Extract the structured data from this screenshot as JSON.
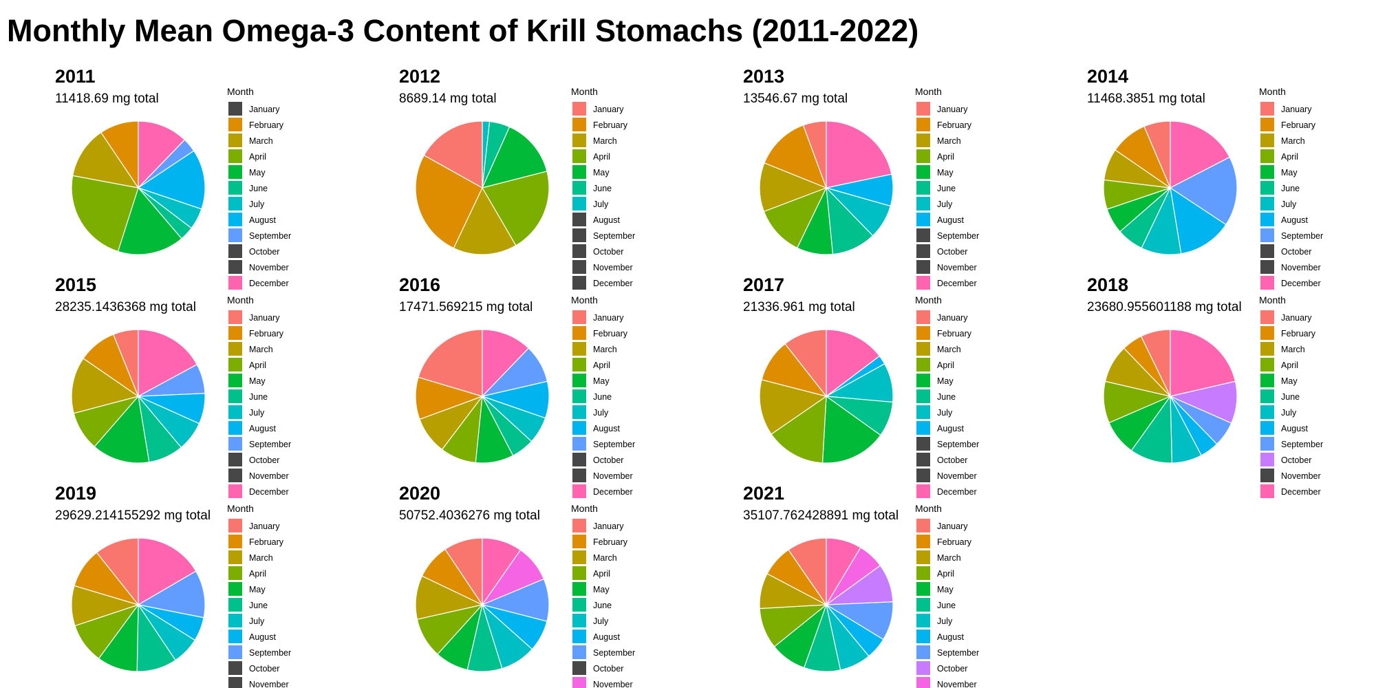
{
  "chart_data": {
    "type": "pie",
    "title": "Monthly Mean Omega-3 Content of Krill Stomachs (2011-2022)",
    "legend_title": "Month",
    "months": [
      "January",
      "February",
      "March",
      "April",
      "May",
      "June",
      "July",
      "August",
      "September",
      "October",
      "November",
      "December"
    ],
    "month_colors": [
      "#F8766D",
      "#DE8C00",
      "#B79F00",
      "#7CAE00",
      "#00BA38",
      "#00C08B",
      "#00BFC4",
      "#00B4F0",
      "#619CFF",
      "#C77CFF",
      "#F564E3",
      "#FF64B0"
    ],
    "missing_color": "#474747",
    "legend_placement": "right of each pie",
    "panels": [
      {
        "year": "2011",
        "total_label": "11418.69 mg total",
        "values": [
          null,
          9.1,
          12.2,
          22.2,
          15.6,
          3.3,
          5.0,
          14.0,
          3.3,
          null,
          null,
          11.8
        ]
      },
      {
        "year": "2012",
        "total_label": "8689.14 mg total",
        "values": [
          16.4,
          25.3,
          15.0,
          20.0,
          13.9,
          4.8,
          1.7,
          null,
          null,
          null,
          null,
          null
        ]
      },
      {
        "year": "2013",
        "total_label": "13546.67 mg total",
        "values": [
          5.4,
          12.8,
          11.4,
          11.6,
          8.4,
          10.3,
          8.0,
          7.4,
          null,
          null,
          null,
          20.9
        ]
      },
      {
        "year": "2014",
        "total_label": "11468.3851 mg total",
        "values": [
          6.4,
          9.0,
          7.7,
          7.1,
          6.2,
          6.5,
          9.7,
          13.1,
          16.9,
          null,
          null,
          17.4
        ]
      },
      {
        "year": "2015",
        "total_label": "28235.1436368 mg total",
        "values": [
          6.1,
          9.3,
          13.7,
          9.5,
          14.0,
          8.5,
          7.2,
          7.4,
          7.2,
          null,
          null,
          17.1
        ]
      },
      {
        "year": "2016",
        "total_label": "17471.569215 mg total",
        "values": [
          20.4,
          10.2,
          9.1,
          8.7,
          9.2,
          5.6,
          6.5,
          8.9,
          9.2,
          null,
          null,
          12.2
        ]
      },
      {
        "year": "2017",
        "total_label": "21336.961 mg total",
        "values": [
          10.6,
          10.4,
          13.6,
          14.5,
          16.0,
          8.5,
          9.5,
          2.2,
          null,
          null,
          null,
          14.7
        ]
      },
      {
        "year": "2018",
        "total_label": "23680.955601188 mg total",
        "values": [
          7.2,
          5.0,
          9.2,
          10.1,
          8.6,
          10.3,
          7.3,
          4.6,
          6.1,
          10.2,
          null,
          21.4
        ]
      },
      {
        "year": "2019",
        "total_label": "29629.214155292 mg total",
        "values": [
          10.7,
          9.7,
          9.7,
          9.8,
          9.8,
          9.7,
          6.7,
          5.8,
          11.5,
          null,
          null,
          16.6
        ]
      },
      {
        "year": "2020",
        "total_label": "50752.4036276 mg total",
        "values": [
          9.4,
          8.5,
          10.6,
          9.8,
          8.1,
          8.4,
          8.6,
          7.6,
          10.3,
          null,
          9.0,
          9.7
        ]
      },
      {
        "year": "2021",
        "total_label": "35107.762428891 mg total",
        "values": [
          9.6,
          7.7,
          8.6,
          9.9,
          8.8,
          8.8,
          7.6,
          5.3,
          9.4,
          9.3,
          6.4,
          8.6
        ]
      }
    ]
  }
}
